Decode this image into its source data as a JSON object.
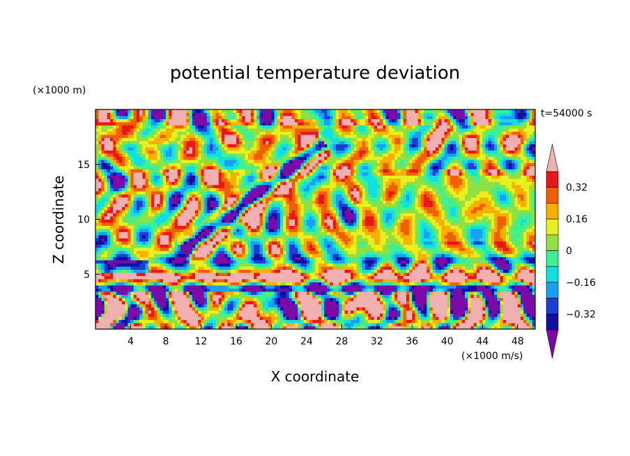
{
  "chart_data": {
    "type": "heatmap",
    "title": "potential temperature deviation",
    "xlabel": "X coordinate",
    "ylabel": "Z coordinate",
    "x_units": "(×1000 m/s)",
    "y_units": "(×1000 m)",
    "time_label": "t=54000 s",
    "xlim": [
      0,
      50
    ],
    "ylim": [
      0,
      20
    ],
    "x_ticks": [
      4,
      8,
      12,
      16,
      20,
      24,
      28,
      32,
      36,
      40,
      44,
      48
    ],
    "y_ticks": [
      5,
      10,
      15
    ],
    "colorbar": {
      "levels": [
        -0.48,
        -0.4,
        -0.32,
        -0.24,
        -0.16,
        -0.08,
        0,
        0.08,
        0.16,
        0.24,
        0.32,
        0.4
      ],
      "tick_labels": [
        "0.32",
        "0.16",
        "0",
        "−0.16",
        "−0.32"
      ],
      "tick_values": [
        0.32,
        0.16,
        0,
        -0.16,
        -0.32
      ],
      "colors": [
        "#7b0aa8",
        "#1010a0",
        "#1a3fd8",
        "#1aa0f0",
        "#10e0e0",
        "#40f090",
        "#90e040",
        "#e8f020",
        "#f8b000",
        "#f06000",
        "#e81818",
        "#f0b0b0"
      ],
      "extend": "both"
    },
    "grid": false
  }
}
